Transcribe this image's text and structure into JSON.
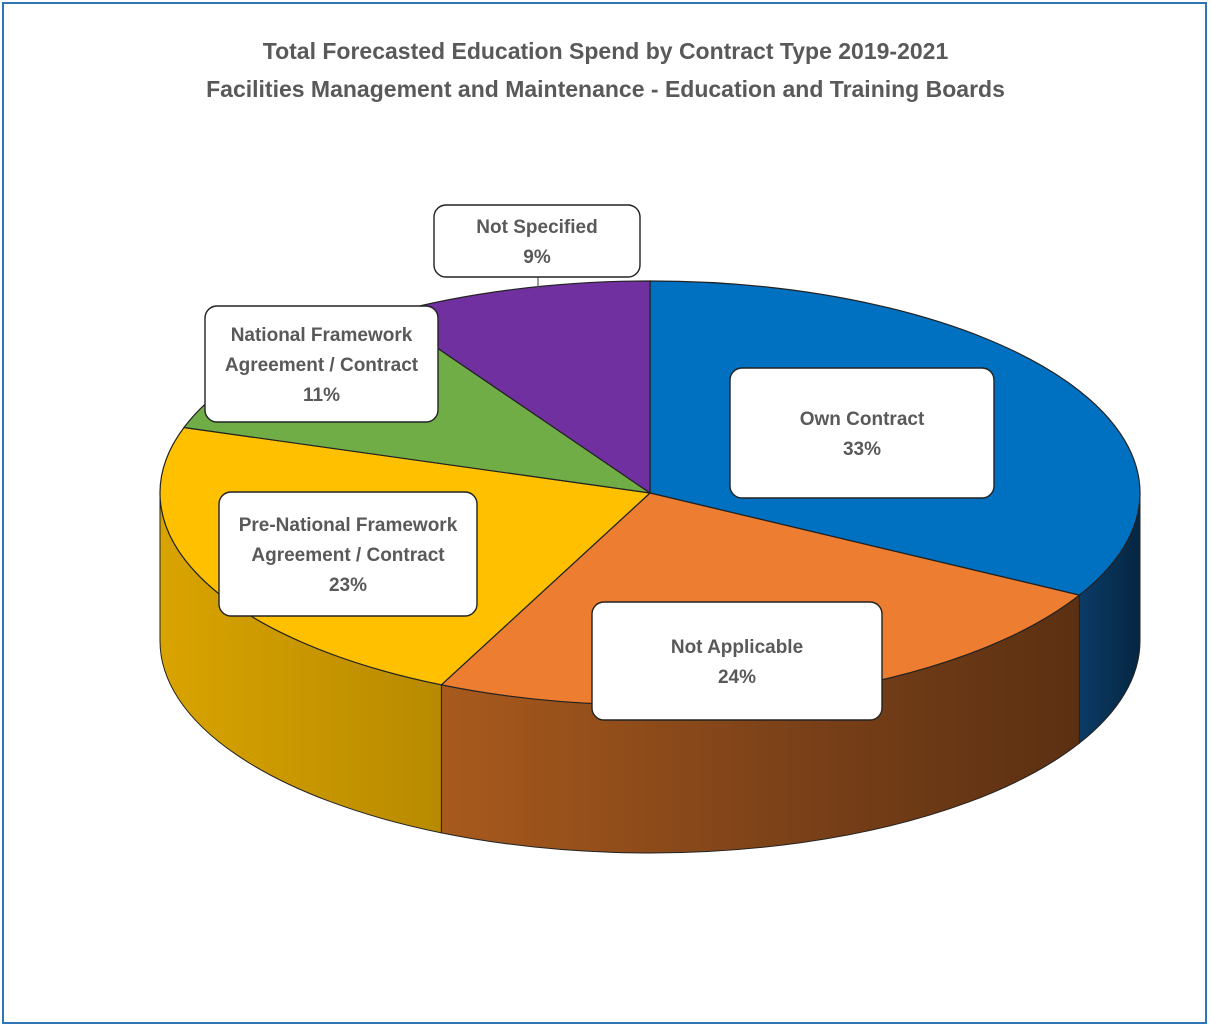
{
  "chart_data": {
    "type": "pie",
    "title": "Total Forecasted Education Spend by Contract Type 2019-2021",
    "subtitle": "Facilities Management and Maintenance - Education and Training Boards",
    "slices": [
      {
        "key": "own",
        "label_lines": [
          "Own Contract"
        ],
        "value": 33,
        "value_label": "33%",
        "color": "#0070c0"
      },
      {
        "key": "na",
        "label_lines": [
          "Not Applicable"
        ],
        "value": 24,
        "value_label": "24%",
        "color": "#ed7d31"
      },
      {
        "key": "pre",
        "label_lines": [
          "Pre-National Framework",
          "Agreement / Contract"
        ],
        "value": 23,
        "value_label": "23%",
        "color": "#ffc000"
      },
      {
        "key": "nfa",
        "label_lines": [
          "National Framework",
          "Agreement / Contract"
        ],
        "value": 11,
        "value_label": "11%",
        "color": "#70ad47"
      },
      {
        "key": "ns",
        "label_lines": [
          "Not Specified"
        ],
        "value": 9,
        "value_label": "9%",
        "color": "#7030a0"
      }
    ],
    "legend": "none",
    "style": "3d-pie"
  }
}
